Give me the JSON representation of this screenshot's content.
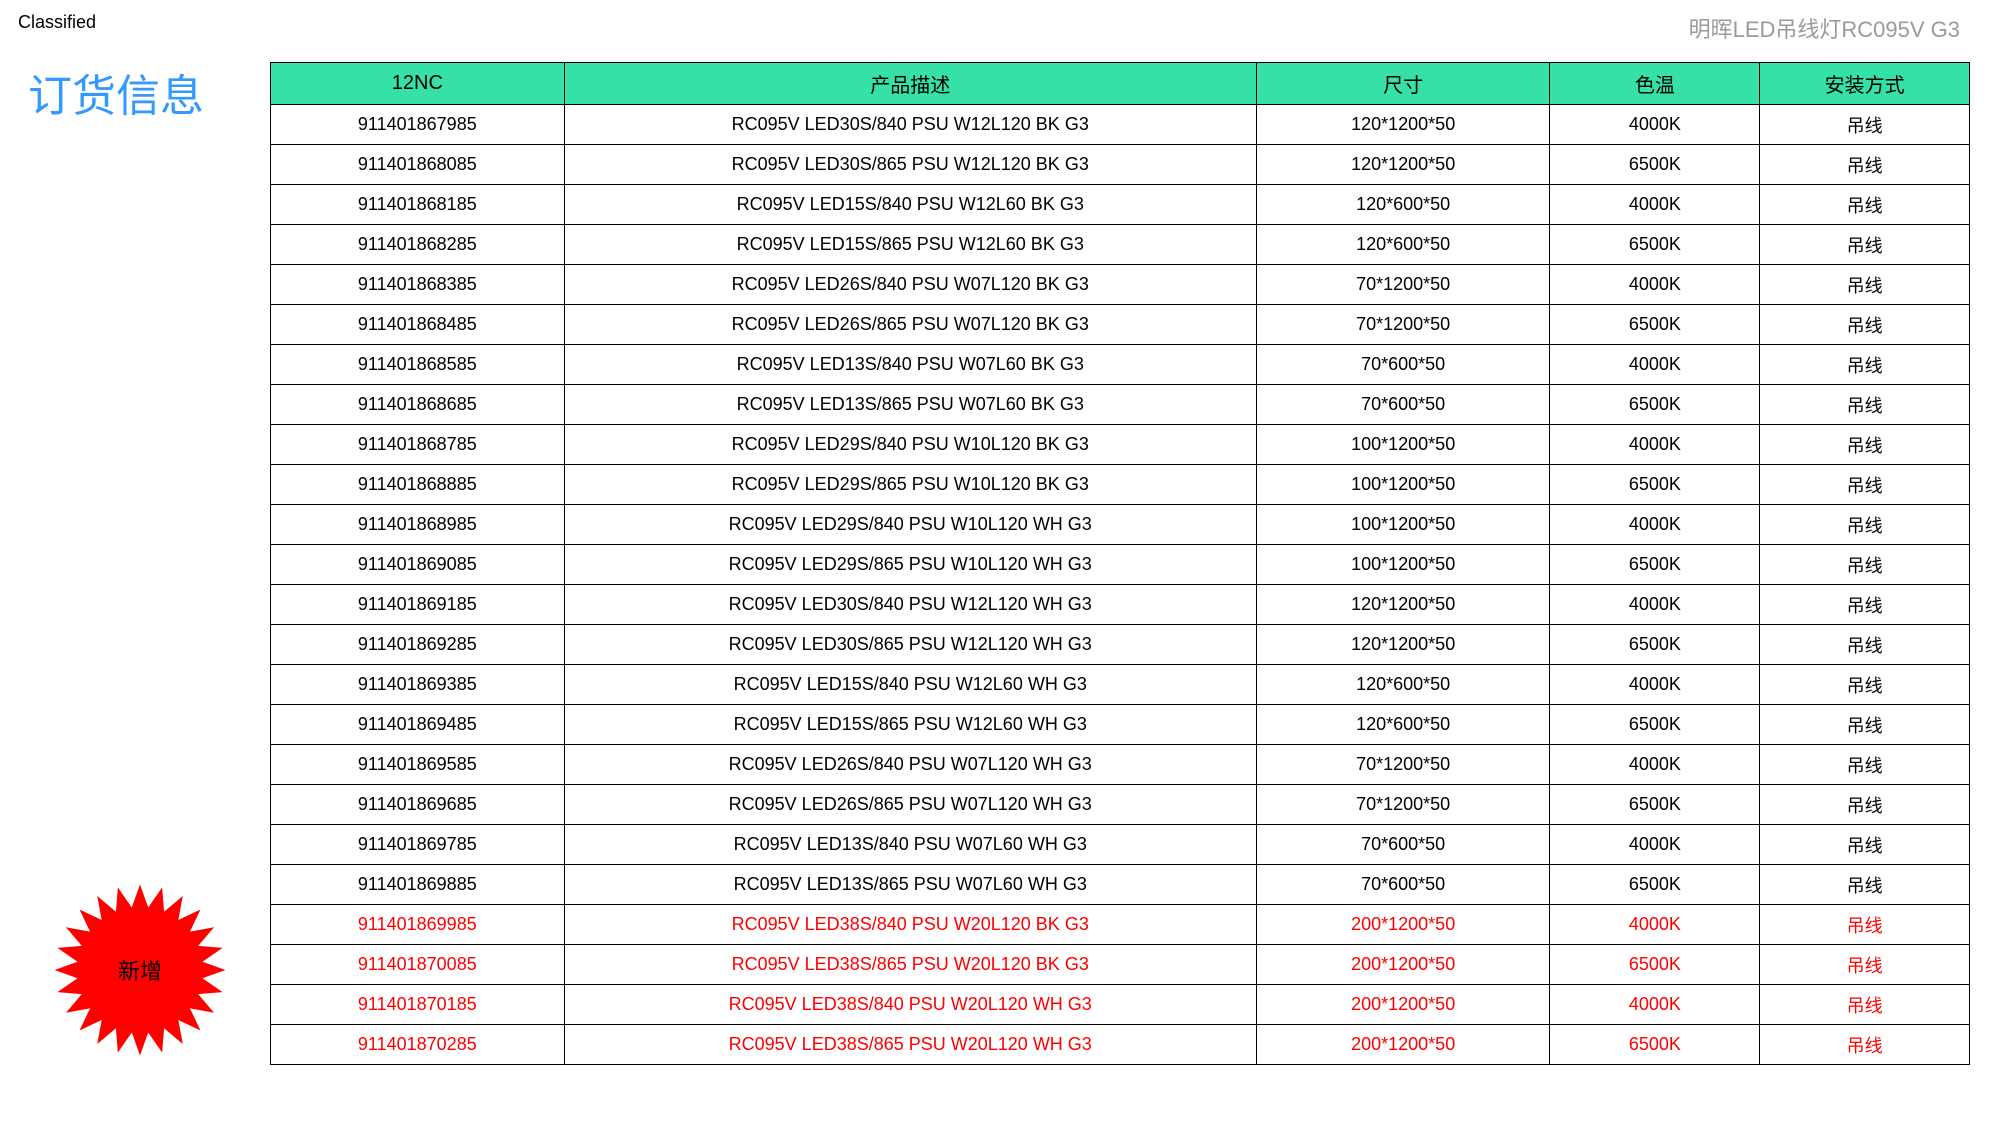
{
  "header": {
    "classified": "Classified",
    "product_title": "明晖LED吊线灯RC095V G3",
    "page_heading": "订货信息"
  },
  "badge": {
    "label": "新增",
    "fill": "#ff0000",
    "text_color": "#000000"
  },
  "table": {
    "header_bg": "#36e1a6",
    "border_color": "#000000",
    "new_row_color": "#ff0000",
    "columns": [
      {
        "label": "12NC",
        "width": "14%"
      },
      {
        "label": "产品描述",
        "width": "33%"
      },
      {
        "label": "尺寸",
        "width": "14%"
      },
      {
        "label": "色温",
        "width": "10%"
      },
      {
        "label": "安装方式",
        "width": "10%"
      }
    ],
    "rows": [
      {
        "nc": "911401867985",
        "desc": "RC095V LED30S/840 PSU W12L120 BK G3",
        "size": "120*1200*50",
        "cct": "4000K",
        "install": "吊线",
        "new": false
      },
      {
        "nc": "911401868085",
        "desc": "RC095V LED30S/865 PSU W12L120 BK G3",
        "size": "120*1200*50",
        "cct": "6500K",
        "install": "吊线",
        "new": false
      },
      {
        "nc": "911401868185",
        "desc": "RC095V LED15S/840 PSU W12L60 BK G3",
        "size": "120*600*50",
        "cct": "4000K",
        "install": "吊线",
        "new": false
      },
      {
        "nc": "911401868285",
        "desc": "RC095V LED15S/865 PSU W12L60 BK G3",
        "size": "120*600*50",
        "cct": "6500K",
        "install": "吊线",
        "new": false
      },
      {
        "nc": "911401868385",
        "desc": "RC095V LED26S/840 PSU W07L120 BK G3",
        "size": "70*1200*50",
        "cct": "4000K",
        "install": "吊线",
        "new": false
      },
      {
        "nc": "911401868485",
        "desc": "RC095V LED26S/865 PSU W07L120 BK G3",
        "size": "70*1200*50",
        "cct": "6500K",
        "install": "吊线",
        "new": false
      },
      {
        "nc": "911401868585",
        "desc": "RC095V LED13S/840 PSU W07L60 BK G3",
        "size": "70*600*50",
        "cct": "4000K",
        "install": "吊线",
        "new": false
      },
      {
        "nc": "911401868685",
        "desc": "RC095V LED13S/865 PSU W07L60 BK G3",
        "size": "70*600*50",
        "cct": "6500K",
        "install": "吊线",
        "new": false
      },
      {
        "nc": "911401868785",
        "desc": "RC095V LED29S/840 PSU W10L120 BK G3",
        "size": "100*1200*50",
        "cct": "4000K",
        "install": "吊线",
        "new": false
      },
      {
        "nc": "911401868885",
        "desc": "RC095V LED29S/865 PSU W10L120 BK G3",
        "size": "100*1200*50",
        "cct": "6500K",
        "install": "吊线",
        "new": false
      },
      {
        "nc": "911401868985",
        "desc": "RC095V LED29S/840 PSU W10L120 WH G3",
        "size": "100*1200*50",
        "cct": "4000K",
        "install": "吊线",
        "new": false
      },
      {
        "nc": "911401869085",
        "desc": "RC095V LED29S/865 PSU W10L120 WH G3",
        "size": "100*1200*50",
        "cct": "6500K",
        "install": "吊线",
        "new": false
      },
      {
        "nc": "911401869185",
        "desc": "RC095V LED30S/840 PSU W12L120 WH G3",
        "size": "120*1200*50",
        "cct": "4000K",
        "install": "吊线",
        "new": false
      },
      {
        "nc": "911401869285",
        "desc": "RC095V LED30S/865 PSU W12L120 WH G3",
        "size": "120*1200*50",
        "cct": "6500K",
        "install": "吊线",
        "new": false
      },
      {
        "nc": "911401869385",
        "desc": "RC095V LED15S/840 PSU W12L60 WH G3",
        "size": "120*600*50",
        "cct": "4000K",
        "install": "吊线",
        "new": false
      },
      {
        "nc": "911401869485",
        "desc": "RC095V LED15S/865 PSU W12L60 WH G3",
        "size": "120*600*50",
        "cct": "6500K",
        "install": "吊线",
        "new": false
      },
      {
        "nc": "911401869585",
        "desc": "RC095V LED26S/840 PSU W07L120 WH G3",
        "size": "70*1200*50",
        "cct": "4000K",
        "install": "吊线",
        "new": false
      },
      {
        "nc": "911401869685",
        "desc": "RC095V LED26S/865 PSU W07L120 WH G3",
        "size": "70*1200*50",
        "cct": "6500K",
        "install": "吊线",
        "new": false
      },
      {
        "nc": "911401869785",
        "desc": "RC095V LED13S/840 PSU W07L60 WH G3",
        "size": "70*600*50",
        "cct": "4000K",
        "install": "吊线",
        "new": false
      },
      {
        "nc": "911401869885",
        "desc": "RC095V LED13S/865 PSU W07L60 WH G3",
        "size": "70*600*50",
        "cct": "6500K",
        "install": "吊线",
        "new": false
      },
      {
        "nc": "911401869985",
        "desc": "RC095V LED38S/840 PSU W20L120 BK G3",
        "size": "200*1200*50",
        "cct": "4000K",
        "install": "吊线",
        "new": true
      },
      {
        "nc": "911401870085",
        "desc": "RC095V LED38S/865 PSU W20L120 BK G3",
        "size": "200*1200*50",
        "cct": "6500K",
        "install": "吊线",
        "new": true
      },
      {
        "nc": "911401870185",
        "desc": "RC095V LED38S/840 PSU W20L120 WH G3",
        "size": "200*1200*50",
        "cct": "4000K",
        "install": "吊线",
        "new": true
      },
      {
        "nc": "911401870285",
        "desc": "RC095V LED38S/865 PSU W20L120 WH G3",
        "size": "200*1200*50",
        "cct": "6500K",
        "install": "吊线",
        "new": true
      }
    ]
  }
}
